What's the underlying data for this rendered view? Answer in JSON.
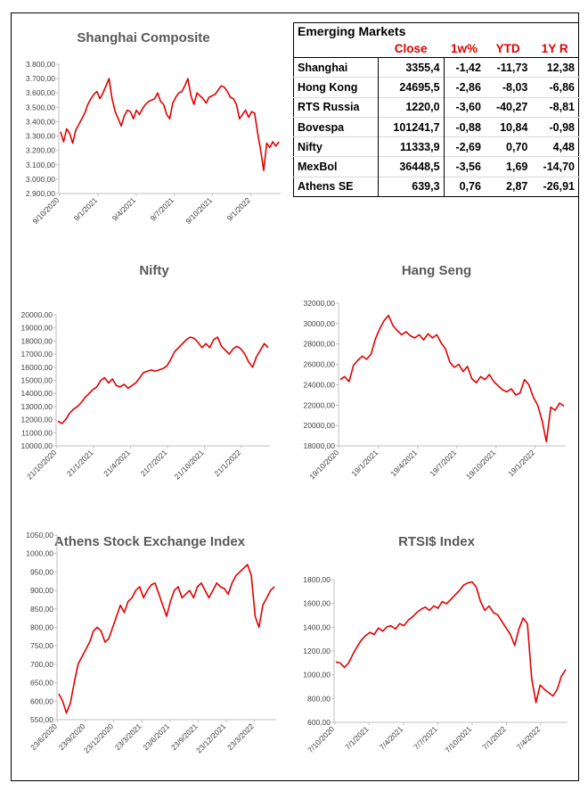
{
  "table": {
    "title": "Emerging Markets",
    "headers": [
      "",
      "Close",
      "1w%",
      "YTD",
      "1Y R"
    ],
    "rows": [
      {
        "name": "Shanghai",
        "close": "3355,4",
        "w1": "-1,42",
        "ytd": "-11,73",
        "y1": "12,38"
      },
      {
        "name": "Hong Kong",
        "close": "24695,5",
        "w1": "-2,86",
        "ytd": "-8,03",
        "y1": "-6,86"
      },
      {
        "name": "RTS Russia",
        "close": "1220,0",
        "w1": "-3,60",
        "ytd": "-40,27",
        "y1": "-8,81"
      },
      {
        "name": "Bovespa",
        "close": "101241,7",
        "w1": "-0,88",
        "ytd": "10,84",
        "y1": "-0,98"
      },
      {
        "name": "Nifty",
        "close": "11333,9",
        "w1": "-2,69",
        "ytd": "0,70",
        "y1": "4,48"
      },
      {
        "name": "MexBol",
        "close": "36448,5",
        "w1": "-3,56",
        "ytd": "1,69",
        "y1": "-14,70"
      },
      {
        "name": "Athens SE",
        "close": "639,3",
        "w1": "0,76",
        "ytd": "2,87",
        "y1": "-26,91"
      }
    ]
  },
  "line_color": "#e00000",
  "chart_data": [
    {
      "id": "shanghai",
      "type": "line",
      "title": "Shanghai Composite",
      "ylim": [
        2900,
        3800
      ],
      "yticks": [
        "2.900,00",
        "3.000,00",
        "3.100,00",
        "3.200,00",
        "3.300,00",
        "3.400,00",
        "3.500,00",
        "3.600,00",
        "3.700,00",
        "3.800,00"
      ],
      "xticks": [
        "9/10/2020",
        "9/1/2021",
        "9/4/2021",
        "9/7/2021",
        "9/10/2021",
        "9/1/2022"
      ],
      "grid": false,
      "series": [
        {
          "color": "#e00000",
          "values": [
            3330,
            3260,
            3350,
            3320,
            3250,
            3340,
            3380,
            3420,
            3460,
            3520,
            3560,
            3590,
            3610,
            3560,
            3600,
            3650,
            3700,
            3560,
            3470,
            3420,
            3370,
            3440,
            3480,
            3470,
            3420,
            3480,
            3450,
            3490,
            3520,
            3540,
            3550,
            3560,
            3600,
            3540,
            3520,
            3450,
            3420,
            3530,
            3570,
            3600,
            3610,
            3650,
            3700,
            3580,
            3520,
            3600,
            3580,
            3560,
            3530,
            3570,
            3580,
            3590,
            3620,
            3650,
            3640,
            3610,
            3570,
            3560,
            3520,
            3420,
            3450,
            3480,
            3430,
            3470,
            3460,
            3320,
            3200,
            3060,
            3250,
            3220,
            3260,
            3230,
            3260
          ]
        }
      ]
    },
    {
      "id": "nifty",
      "type": "line",
      "title": "Nifty",
      "ylim": [
        10000,
        20000
      ],
      "yticks": [
        "10000,00",
        "11000,00",
        "12000,00",
        "13000,00",
        "14000,00",
        "15000,00",
        "16000,00",
        "17000,00",
        "18000,00",
        "19000,00",
        "20000,00"
      ],
      "xticks": [
        "21/10/2020",
        "21/1/2021",
        "21/4/2021",
        "21/7/2021",
        "21/10/2021",
        "21/1/2022"
      ],
      "grid": false,
      "series": [
        {
          "color": "#e00000",
          "values": [
            11900,
            11700,
            12000,
            12500,
            12800,
            13000,
            13300,
            13700,
            14000,
            14300,
            14500,
            15000,
            15200,
            14800,
            15100,
            14600,
            14500,
            14700,
            14400,
            14600,
            14800,
            15200,
            15600,
            15700,
            15800,
            15700,
            15800,
            15900,
            16100,
            16600,
            17200,
            17500,
            17800,
            18100,
            18300,
            18200,
            17900,
            17500,
            17800,
            17500,
            18100,
            18300,
            17600,
            17300,
            17000,
            17400,
            17600,
            17400,
            17000,
            16400,
            16000,
            16800,
            17300,
            17800,
            17500
          ]
        }
      ]
    },
    {
      "id": "hangseng",
      "type": "line",
      "title": "Hang Seng",
      "ylim": [
        18000,
        32000
      ],
      "yticks": [
        "18000,00",
        "20000,00",
        "22000,00",
        "24000,00",
        "26000,00",
        "28000,00",
        "30000,00",
        "32000,00"
      ],
      "xticks": [
        "19/10/2020",
        "19/1/2021",
        "19/4/2021",
        "19/7/2021",
        "19/10/2021",
        "19/1/2022"
      ],
      "grid": false,
      "series": [
        {
          "color": "#e00000",
          "values": [
            24500,
            24800,
            24300,
            25900,
            26400,
            26800,
            26500,
            27000,
            28500,
            29500,
            30300,
            30800,
            29800,
            29300,
            28900,
            29200,
            28800,
            28600,
            28900,
            28400,
            29000,
            28600,
            28900,
            28100,
            27500,
            26200,
            25700,
            26000,
            25300,
            25800,
            24600,
            24200,
            24800,
            24500,
            25000,
            24300,
            23900,
            23500,
            23300,
            23600,
            23000,
            23200,
            24500,
            24000,
            22800,
            22000,
            20500,
            18400,
            21800,
            21500,
            22200,
            21900
          ]
        }
      ]
    },
    {
      "id": "athens",
      "type": "line",
      "title": "Athens Stock Exchange Index",
      "ylim": [
        550,
        1050
      ],
      "yticks": [
        "550,00",
        "600,00",
        "650,00",
        "700,00",
        "750,00",
        "800,00",
        "850,00",
        "900,00",
        "950,00",
        "1000,00",
        "1050,00"
      ],
      "xticks": [
        "23/6/2020",
        "23/9/2020",
        "23/12/2020",
        "23/3/2021",
        "23/6/2021",
        "23/9/2021",
        "23/12/2021",
        "23/3/2022"
      ],
      "grid": false,
      "series": [
        {
          "color": "#e00000",
          "values": [
            620,
            600,
            568,
            595,
            650,
            700,
            720,
            740,
            760,
            790,
            800,
            790,
            760,
            770,
            800,
            830,
            860,
            840,
            870,
            880,
            900,
            910,
            880,
            900,
            915,
            920,
            890,
            860,
            830,
            870,
            900,
            910,
            880,
            890,
            900,
            880,
            910,
            920,
            900,
            880,
            900,
            920,
            910,
            905,
            890,
            920,
            940,
            950,
            960,
            970,
            940,
            830,
            800,
            860,
            880,
            900,
            910
          ]
        }
      ]
    },
    {
      "id": "rtsi",
      "type": "line",
      "title": "RTSI$ Index",
      "ylim": [
        600,
        1900
      ],
      "yticks": [
        "600,00",
        "800,00",
        "1000,00",
        "1200,00",
        "1400,00",
        "1600,00",
        "1800,00"
      ],
      "xticks": [
        "7/10/2020",
        "7/1/2021",
        "7/4/2021",
        "7/7/2021",
        "7/10/2021",
        "7/1/2022",
        "7/4/2022"
      ],
      "grid": false,
      "series": [
        {
          "color": "#e00000",
          "values": [
            1150,
            1140,
            1100,
            1140,
            1220,
            1290,
            1350,
            1390,
            1420,
            1400,
            1460,
            1430,
            1470,
            1480,
            1450,
            1500,
            1480,
            1530,
            1560,
            1600,
            1630,
            1650,
            1620,
            1660,
            1640,
            1700,
            1680,
            1720,
            1760,
            1800,
            1850,
            1870,
            1880,
            1830,
            1700,
            1620,
            1660,
            1600,
            1580,
            1520,
            1460,
            1400,
            1300,
            1450,
            1550,
            1500,
            1000,
            780,
            940,
            900,
            870,
            840,
            900,
            1020,
            1080
          ]
        }
      ]
    }
  ]
}
